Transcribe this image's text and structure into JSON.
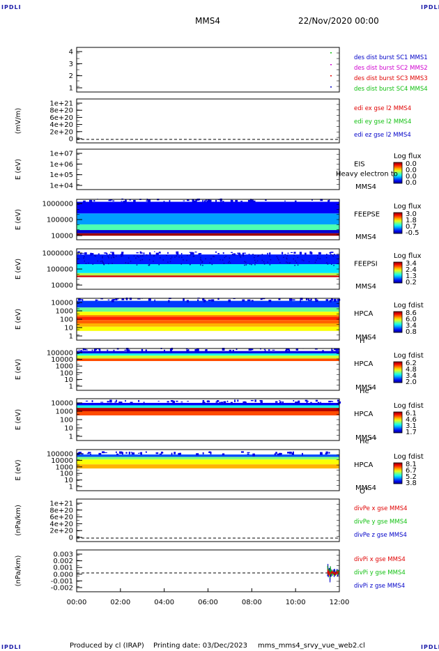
{
  "corner_label": "IPDLI",
  "header": {
    "spacecraft": "MMS4",
    "datetime": "22/Nov/2020 00:00"
  },
  "footer": {
    "produced_by": "Produced by cl (IRAP)",
    "printing_date": "Printing date: 03/Dec/2023",
    "script": "mms_mms4_srvy_vue_web2.cl"
  },
  "colors": {
    "red": "#e00000",
    "green": "#10c010",
    "blue": "#0000c8",
    "magenta": "#d000d0"
  },
  "chart_data": {
    "type": "spectrogram-stack",
    "x_ticks": [
      "00:00",
      "02:00",
      "04:00",
      "06:00",
      "08:00",
      "10:00",
      "12:00"
    ],
    "panels": [
      {
        "type": "line",
        "yticks": [
          "4",
          "3",
          "2",
          "1"
        ],
        "ylim": [
          0.5,
          4.5
        ],
        "ylabel": "",
        "legend": [
          {
            "text": "des dist burst SC1 MMS1",
            "color": "#0000c8"
          },
          {
            "text": "des dist burst SC2 MMS2",
            "color": "#d000d0"
          },
          {
            "text": "des dist burst SC3 MMS3",
            "color": "#e00000"
          },
          {
            "text": "des dist burst SC4 MMS4",
            "color": "#10c010"
          }
        ]
      },
      {
        "type": "line",
        "yticks": [
          "1e+21",
          "8e+20",
          "6e+20",
          "4e+20",
          "2e+20",
          "0"
        ],
        "ylim": [
          0,
          1e+21
        ],
        "ylabel": "(mV/m)",
        "legend": [
          {
            "text": "edi ex gse l2 MMS4",
            "color": "#e00000"
          },
          {
            "text": "edi ey gse l2 MMS4",
            "color": "#10c010"
          },
          {
            "text": "edi ez gse l2 MMS4",
            "color": "#0000c8"
          }
        ]
      },
      {
        "type": "spectrogram",
        "yticks": [
          "1e+07",
          "1e+06",
          "1e+05",
          "1e+04"
        ],
        "ylabel": "E (eV)",
        "labels": [
          "EIS",
          "MMS4"
        ],
        "overlay": "Heavy electron to",
        "cbar_title": "Log flux",
        "cbar_ticks": [
          "0.0",
          "0.0",
          "0.0",
          "0.0"
        ]
      },
      {
        "type": "spectrogram",
        "yticks": [
          "1000000",
          "100000",
          "10000"
        ],
        "ylabel": "E (eV)",
        "labels": [
          "FEEPSE",
          "MMS4"
        ],
        "cbar_title": "Log flux",
        "cbar_ticks": [
          "3.0",
          "1.8",
          "0.7",
          "-0.5"
        ]
      },
      {
        "type": "spectrogram",
        "yticks": [
          "1000000",
          "100000",
          "10000"
        ],
        "ylabel": "E (eV)",
        "labels": [
          "FEEPSI",
          "MMS4"
        ],
        "cbar_title": "Log flux",
        "cbar_ticks": [
          "3.4",
          "2.4",
          "1.3",
          "0.2"
        ]
      },
      {
        "type": "spectrogram",
        "yticks": [
          "10000",
          "1000",
          "100",
          "10",
          "1"
        ],
        "ylabel": "E (eV)",
        "labels": [
          "HPCA",
          "MMS4"
        ],
        "species": "H",
        "species_sup": "+",
        "cbar_title": "Log fdist",
        "cbar_ticks": [
          "8.6",
          "6.0",
          "3.4",
          "0.8"
        ]
      },
      {
        "type": "spectrogram",
        "yticks": [
          "100000",
          "10000",
          "1000",
          "100",
          "10",
          "1"
        ],
        "ylabel": "E (eV)",
        "labels": [
          "HPCA",
          "MMS4"
        ],
        "species": "He",
        "species_sup": "+",
        "cbar_title": "Log fdist",
        "cbar_ticks": [
          "6.2",
          "4.8",
          "3.4",
          "2.0"
        ]
      },
      {
        "type": "spectrogram",
        "yticks": [
          "10000",
          "1000",
          "100",
          "10",
          "1"
        ],
        "ylabel": "E (eV)",
        "labels": [
          "HPCA",
          "MMS4"
        ],
        "species": "He",
        "species_sup": "++",
        "cbar_title": "Log fdist",
        "cbar_ticks": [
          "6.1",
          "4.6",
          "3.1",
          "1.7"
        ]
      },
      {
        "type": "spectrogram",
        "yticks": [
          "100000",
          "10000",
          "1000",
          "100",
          "10",
          "1"
        ],
        "ylabel": "E (eV)",
        "labels": [
          "HPCA",
          "MMS4"
        ],
        "species": "O",
        "species_sup": "+",
        "cbar_title": "Log fdist",
        "cbar_ticks": [
          "8.1",
          "6.7",
          "5.2",
          "3.8"
        ]
      },
      {
        "type": "line",
        "yticks": [
          "1e+21",
          "8e+20",
          "6e+20",
          "4e+20",
          "2e+20",
          "0"
        ],
        "ylim": [
          0,
          1e+21
        ],
        "ylabel": "(nPa/km)",
        "legend": [
          {
            "text": "divPe x gse MMS4",
            "color": "#e00000"
          },
          {
            "text": "divPe y gse MMS4",
            "color": "#10c010"
          },
          {
            "text": "divPe z gse MMS4",
            "color": "#0000c8"
          }
        ]
      },
      {
        "type": "line",
        "yticks": [
          "0.003",
          "0.002",
          "0.001",
          "0.000",
          "-0.001",
          "-0.002"
        ],
        "ylim": [
          -0.0025,
          0.0031
        ],
        "ylabel": "(nPa/km)",
        "legend": [
          {
            "text": "divPi x gse MMS4",
            "color": "#e00000"
          },
          {
            "text": "divPi y gse MMS4",
            "color": "#10c010"
          },
          {
            "text": "divPi z gse MMS4",
            "color": "#0000c8"
          }
        ]
      }
    ]
  }
}
